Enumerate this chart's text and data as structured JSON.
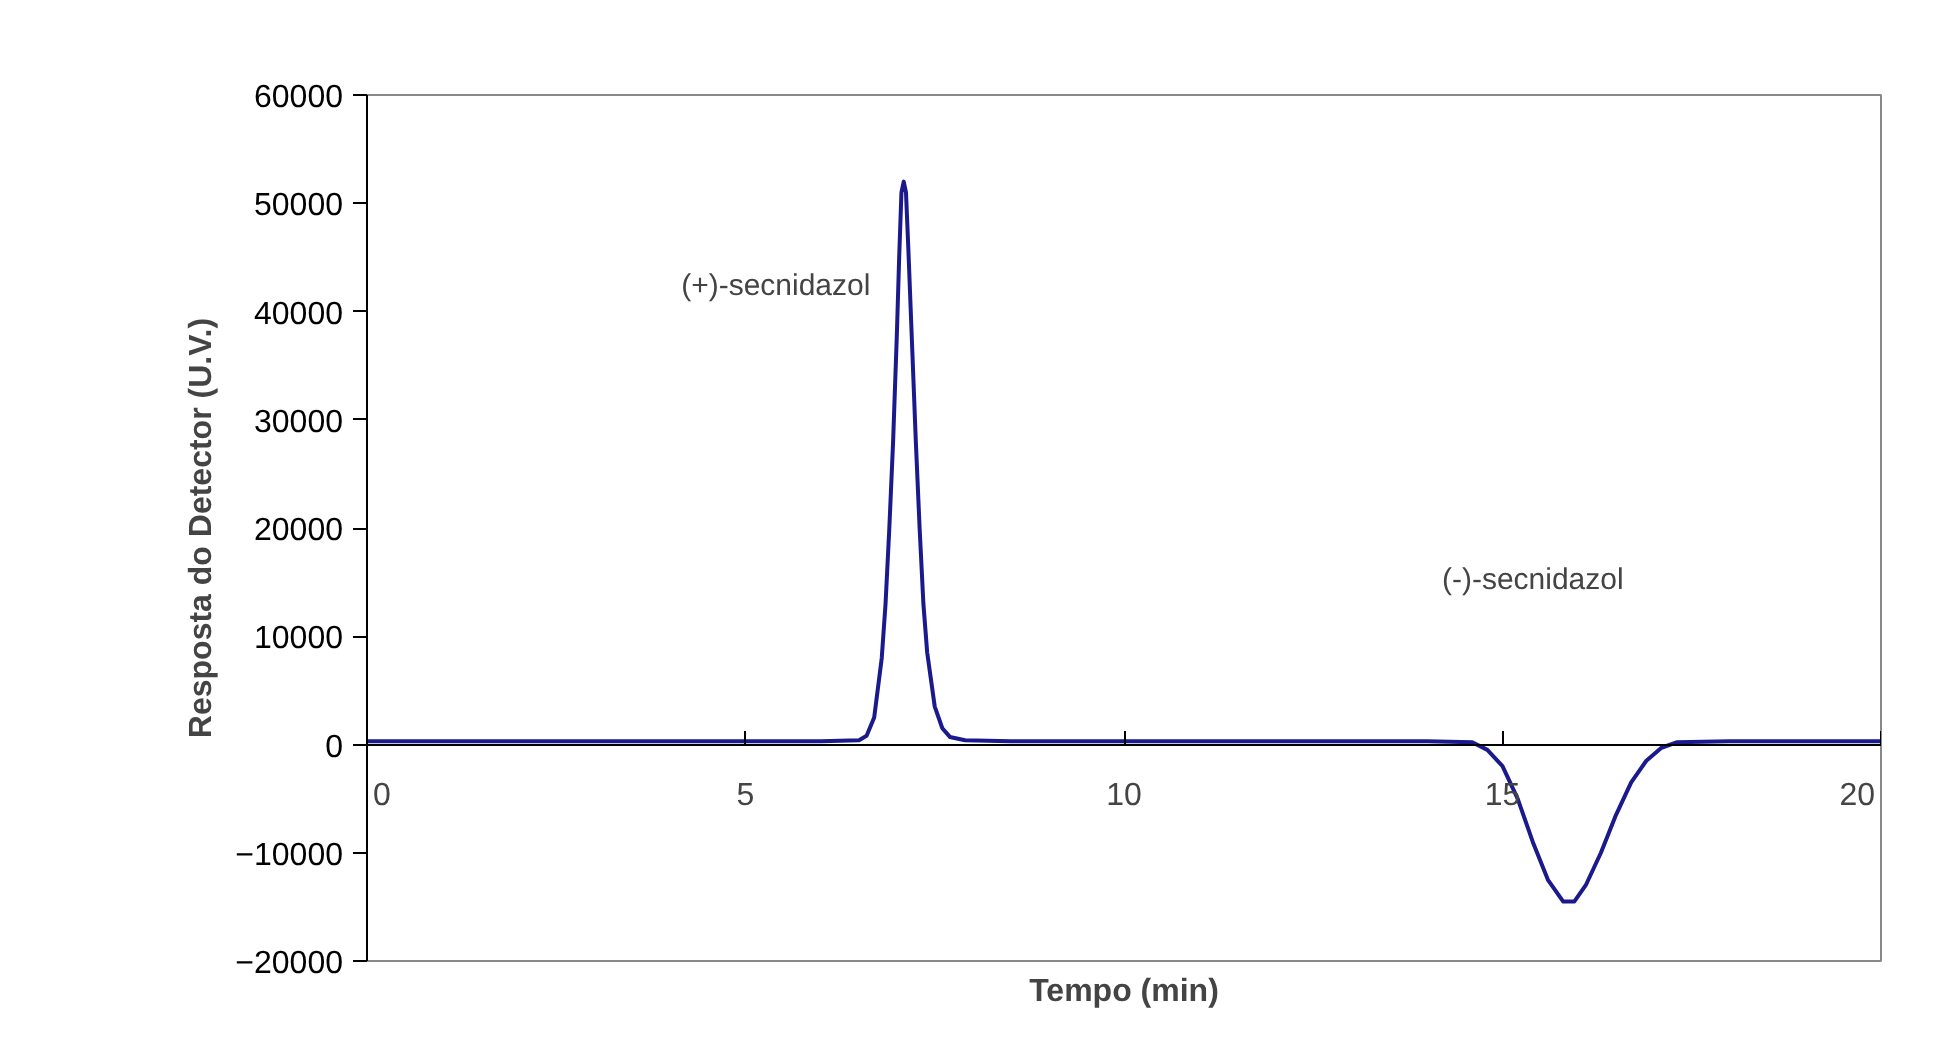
{
  "chart_data": {
    "type": "line",
    "xlabel": "Tempo (min)",
    "ylabel": "Resposta do Detector (U.V.)",
    "x": [
      0,
      3,
      6.0,
      6.5,
      6.6,
      6.7,
      6.8,
      6.85,
      6.9,
      6.95,
      7.0,
      7.03,
      7.06,
      7.09,
      7.12,
      7.15,
      7.2,
      7.25,
      7.3,
      7.35,
      7.4,
      7.5,
      7.6,
      7.7,
      7.9,
      8.5,
      14,
      14.6,
      14.8,
      15.0,
      15.2,
      15.4,
      15.6,
      15.8,
      15.95,
      16.1,
      16.3,
      16.5,
      16.7,
      16.9,
      17.1,
      17.3,
      18,
      20
    ],
    "series": [
      {
        "color": "#1a1a8c",
        "values": [
          300,
          300,
          300,
          400,
          800,
          2500,
          8000,
          13000,
          20000,
          28000,
          38000,
          45000,
          51000,
          52000,
          51000,
          46000,
          37000,
          28000,
          20000,
          13000,
          8500,
          3500,
          1500,
          700,
          400,
          300,
          300,
          200,
          -500,
          -2000,
          -5000,
          -9000,
          -12500,
          -14500,
          -14500,
          -13000,
          -10000,
          -6500,
          -3500,
          -1500,
          -300,
          200,
          300,
          300
        ]
      }
    ],
    "xlim": [
      0,
      20
    ],
    "xticks": [
      0,
      5,
      10,
      15,
      20
    ],
    "ylim": [
      -20000,
      60000
    ],
    "yticks": [
      -20000,
      -10000,
      0,
      10000,
      20000,
      30000,
      40000,
      50000,
      60000
    ],
    "annotations": [
      "(+)-secnidazol",
      "(-)-secnidazol"
    ],
    "grid": false,
    "marker": "none",
    "line_style": "solid"
  }
}
